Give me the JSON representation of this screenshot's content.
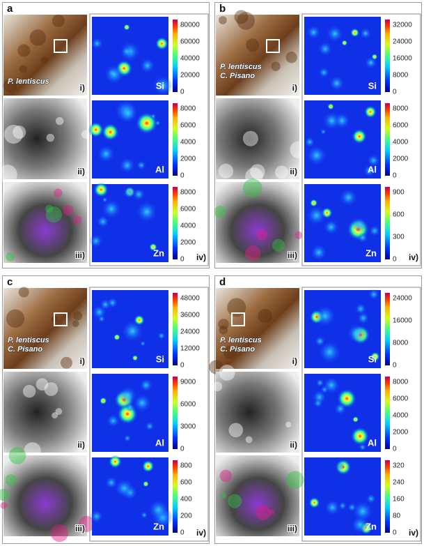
{
  "panels": [
    {
      "letter": "a",
      "caption": [
        "P. lentiscus"
      ],
      "images": [
        "i)",
        "ii)",
        "iii)"
      ],
      "map_label": "iv)",
      "maps": [
        {
          "element": "Si",
          "ticks": [
            80000,
            60000,
            40000,
            20000,
            0
          ]
        },
        {
          "element": "Al",
          "ticks": [
            8000,
            6000,
            4000,
            2000,
            0
          ]
        },
        {
          "element": "Zn",
          "ticks": [
            8000,
            6000,
            4000,
            2000,
            0
          ]
        }
      ]
    },
    {
      "letter": "b",
      "caption": [
        "P. lentiscus",
        "C. Pisano"
      ],
      "images": [
        "i)",
        "ii)",
        "iii)"
      ],
      "map_label": "iv)",
      "maps": [
        {
          "element": "Si",
          "ticks": [
            32000,
            24000,
            16000,
            8000,
            0
          ]
        },
        {
          "element": "Al",
          "ticks": [
            8000,
            6000,
            4000,
            2000,
            0
          ]
        },
        {
          "element": "Zn",
          "ticks": [
            900,
            600,
            300,
            0
          ]
        }
      ]
    },
    {
      "letter": "c",
      "caption": [
        "P. lentiscus",
        "C. Pisano"
      ],
      "images": [
        "i)",
        "ii)",
        "iii)"
      ],
      "map_label": "iv)",
      "maps": [
        {
          "element": "Si",
          "ticks": [
            48000,
            36000,
            24000,
            12000,
            0
          ]
        },
        {
          "element": "Al",
          "ticks": [
            9000,
            6000,
            3000,
            0
          ]
        },
        {
          "element": "Zn",
          "ticks": [
            800,
            600,
            400,
            200,
            0
          ]
        }
      ]
    },
    {
      "letter": "d",
      "caption": [
        "P. lentiscus",
        "C. Pisano"
      ],
      "images": [
        "i)",
        "ii)",
        "iii)"
      ],
      "map_label": "iv)",
      "maps": [
        {
          "element": "Si",
          "ticks": [
            24000,
            16000,
            8000,
            0
          ]
        },
        {
          "element": "Al",
          "ticks": [
            8000,
            6000,
            4000,
            2000,
            0
          ]
        },
        {
          "element": "Zn",
          "ticks": [
            320,
            240,
            160,
            80,
            0
          ]
        }
      ]
    }
  ]
}
